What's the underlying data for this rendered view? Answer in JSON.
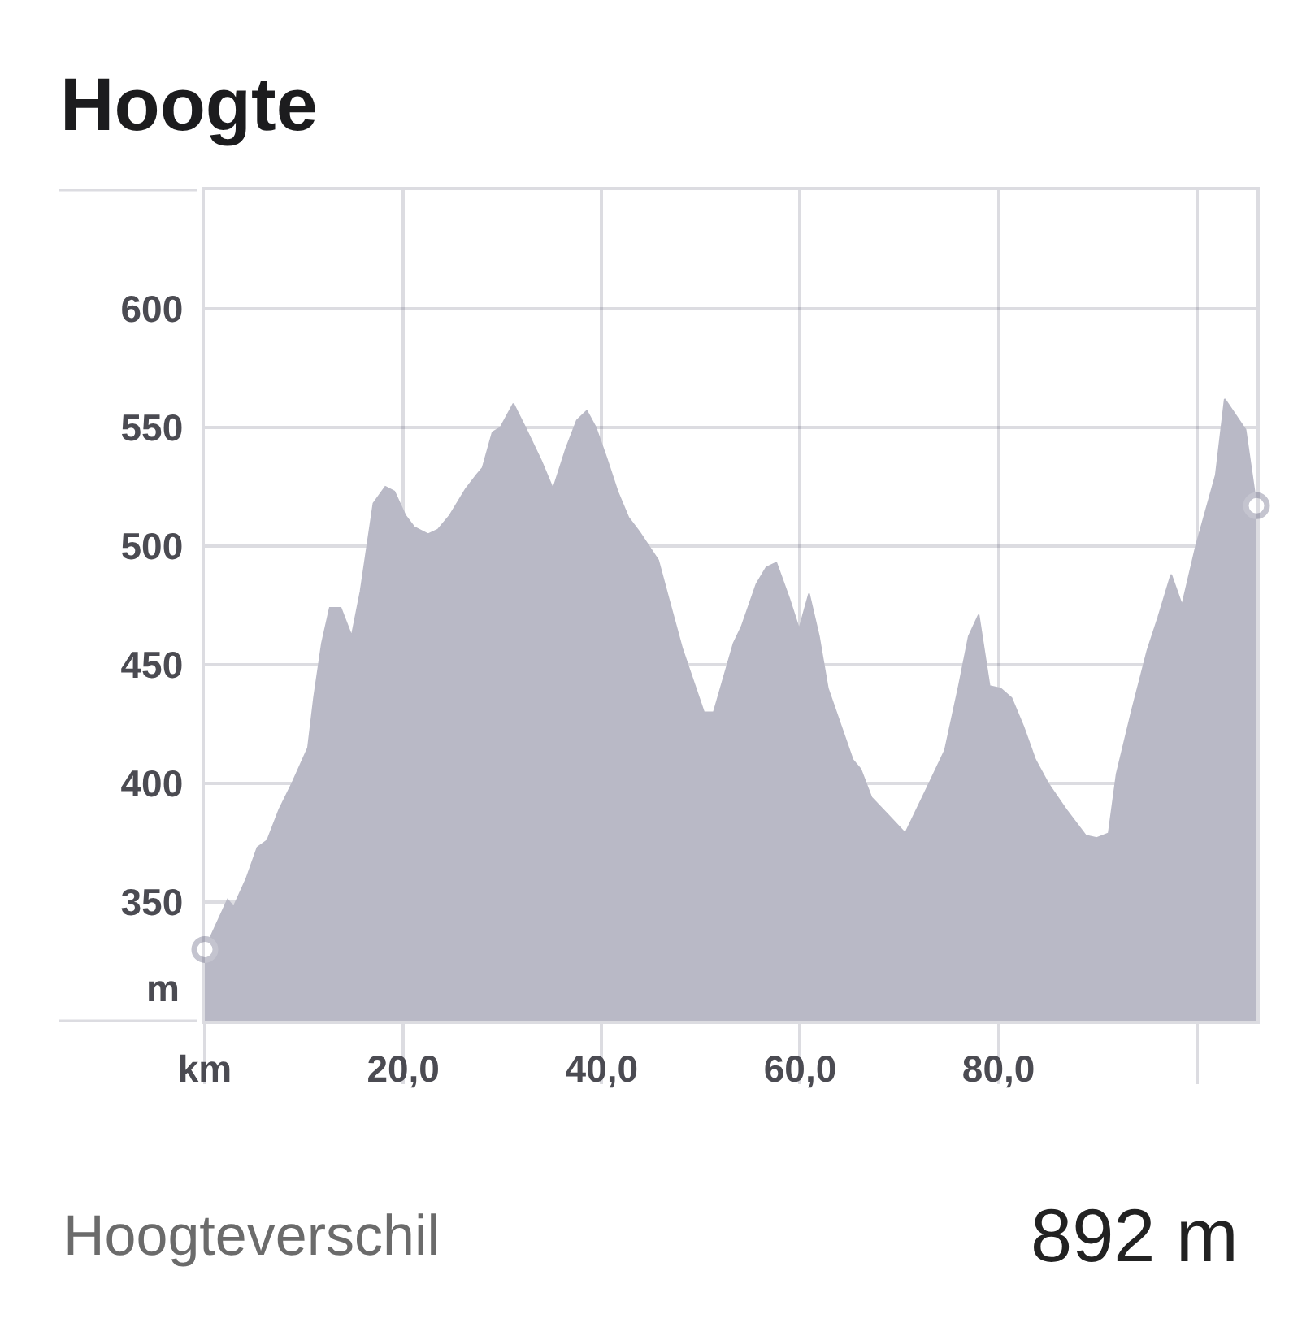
{
  "chart_data": {
    "type": "area",
    "title": "Hoogte",
    "ylabel": "m",
    "x": [
      0,
      2.3,
      2.9,
      4.2,
      5.3,
      6.3,
      7.5,
      8.8,
      10.4,
      11.0,
      11.8,
      12.6,
      13.7,
      14.8,
      15.7,
      17.0,
      18.2,
      19.1,
      20.2,
      21.1,
      22.5,
      23.5,
      24.7,
      26.3,
      27.4,
      28.0,
      29.0,
      29.8,
      31.1,
      32.3,
      33.9,
      35.1,
      36.4,
      37.5,
      38.5,
      39.4,
      40.5,
      41.6,
      42.7,
      43.8,
      45.7,
      46.8,
      48.1,
      50.3,
      51.3,
      53.3,
      54.1,
      55.6,
      56.6,
      57.6,
      58.9,
      59.9,
      60.9,
      61.9,
      62.8,
      65.3,
      66.1,
      67.2,
      68.8,
      70.6,
      72.9,
      74.6,
      76.0,
      77.0,
      78.0,
      79.1,
      80.2,
      81.3,
      82.5,
      83.7,
      85.0,
      86.8,
      88.8,
      89.9,
      91.1,
      91.9,
      93.4,
      95.0,
      96.1,
      97.4,
      98.5,
      99.9,
      101.9,
      102.8,
      104.9,
      106
    ],
    "series": [
      {
        "color": "#b9b9c6",
        "values": [
          330,
          351,
          348,
          360,
          373,
          376,
          389,
          400,
          415,
          436,
          459,
          474,
          474,
          462,
          481,
          518,
          525,
          523,
          513,
          508,
          505,
          507,
          513,
          524,
          530,
          533,
          548,
          550,
          560,
          550,
          536,
          524,
          541,
          553,
          557,
          550,
          537,
          523,
          512,
          506,
          494,
          477,
          457,
          430,
          430,
          459,
          466,
          484,
          491,
          493,
          478,
          465,
          480,
          462,
          440,
          410,
          406,
          394,
          387,
          379,
          399,
          414,
          441,
          462,
          471,
          441,
          440,
          436,
          424,
          410,
          400,
          389,
          378,
          377,
          379,
          404,
          430,
          456,
          470,
          488,
          475,
          500,
          530,
          562,
          549,
          517
        ]
      },
      {
        "type": "scatter",
        "marker": "circle",
        "color": "#c4c4cf",
        "x": [
          0,
          106
        ],
        "values": [
          330,
          517
        ]
      }
    ],
    "xlim": [
      0,
      106
    ],
    "ylim": [
      300,
      650
    ],
    "xticks": [
      {
        "value": 0,
        "label": "km"
      },
      {
        "value": 20,
        "label": "20,0"
      },
      {
        "value": 40,
        "label": "40,0"
      },
      {
        "value": 60,
        "label": "60,0"
      },
      {
        "value": 80,
        "label": "80,0"
      },
      {
        "value": 100,
        "label": null
      }
    ],
    "yticks": [
      350,
      400,
      450,
      500,
      550,
      600
    ],
    "grid": true,
    "annotations": [
      "Hoogteverschil",
      "892 m"
    ]
  }
}
